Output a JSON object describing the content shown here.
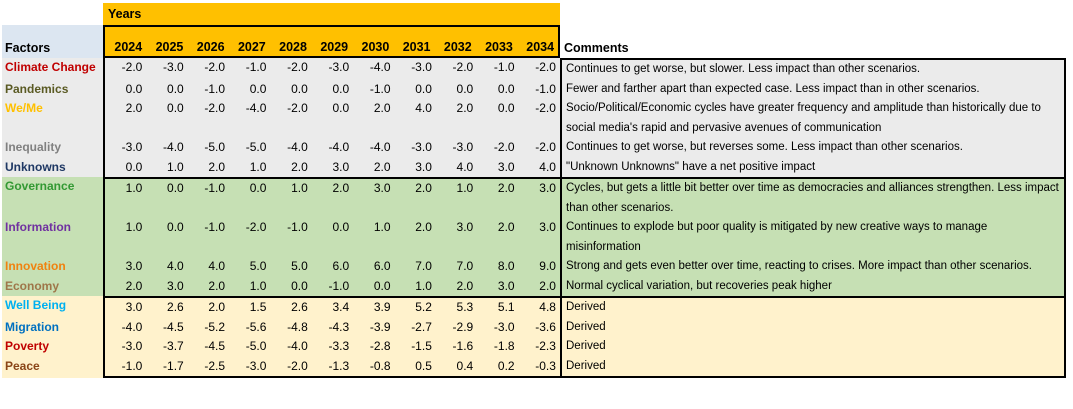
{
  "header": {
    "years_label": "Years",
    "factors_label": "Factors",
    "comments_label": "Comments",
    "years": [
      "2024",
      "2025",
      "2026",
      "2027",
      "2028",
      "2029",
      "2030",
      "2031",
      "2032",
      "2033",
      "2034"
    ]
  },
  "colors": {
    "years_band_bg": "#ffc000",
    "factors_header_bg": "#dce6f1",
    "border": "#000000",
    "scenario_section_bg": "#ebebeb",
    "response_section_bg": "#c6e0b4",
    "derived_section_bg": "#fff2cc"
  },
  "sections": [
    {
      "id": "scenario-factors",
      "bg": "#ebebeb",
      "rows": [
        {
          "factor": "Climate Change",
          "color": "#c00000",
          "values": [
            "-2.0",
            "-3.0",
            "-2.0",
            "-1.0",
            "-2.0",
            "-3.0",
            "-4.0",
            "-3.0",
            "-2.0",
            "-1.0",
            "-2.0"
          ],
          "comment": "Continues to get worse, but slower.  Less impact than other scenarios."
        },
        {
          "factor": "Pandemics",
          "color": "#5a5a23",
          "values": [
            "0.0",
            "0.0",
            "-1.0",
            "0.0",
            "0.0",
            "0.0",
            "-1.0",
            "0.0",
            "0.0",
            "0.0",
            "-1.0"
          ],
          "comment": "Fewer and farther apart than expected case.  Less impact than in other scenarios."
        },
        {
          "factor": "We/Me",
          "color": "#ffc000",
          "values": [
            "2.0",
            "0.0",
            "-2.0",
            "-4.0",
            "-2.0",
            "0.0",
            "2.0",
            "4.0",
            "2.0",
            "0.0",
            "-2.0"
          ],
          "comment": "Socio/Political/Economic cycles have greater frequency and amplitude than historically due to social media's rapid and pervasive avenues of communication"
        },
        {
          "factor": "Inequality",
          "color": "#808080",
          "values": [
            "-3.0",
            "-4.0",
            "-5.0",
            "-5.0",
            "-4.0",
            "-4.0",
            "-4.0",
            "-3.0",
            "-3.0",
            "-2.0",
            "-2.0"
          ],
          "comment": "Continues to get worse, but reverses some.  Less impact than other scenarios."
        },
        {
          "factor": "Unknowns",
          "color": "#1f3864",
          "values": [
            "0.0",
            "1.0",
            "2.0",
            "1.0",
            "2.0",
            "3.0",
            "2.0",
            "3.0",
            "4.0",
            "3.0",
            "4.0"
          ],
          "comment": "\"Unknown Unknowns\" have a net positive impact"
        }
      ]
    },
    {
      "id": "response-factors",
      "bg": "#c6e0b4",
      "rows": [
        {
          "factor": "Governance",
          "color": "#339933",
          "values": [
            "1.0",
            "0.0",
            "-1.0",
            "0.0",
            "1.0",
            "2.0",
            "3.0",
            "2.0",
            "1.0",
            "2.0",
            "3.0"
          ],
          "comment": "Cycles, but gets a little bit better over time as democracies and alliances strengthen. Less impact than other scenarios."
        },
        {
          "factor": "Information",
          "color": "#7030a0",
          "values": [
            "1.0",
            "0.0",
            "-1.0",
            "-2.0",
            "-1.0",
            "0.0",
            "1.0",
            "2.0",
            "3.0",
            "2.0",
            "3.0"
          ],
          "comment": "Continues to explode but poor quality is mitigated by new creative ways to manage misinformation"
        },
        {
          "factor": "Innovation",
          "color": "#f0820f",
          "values": [
            "3.0",
            "4.0",
            "4.0",
            "5.0",
            "5.0",
            "6.0",
            "6.0",
            "7.0",
            "7.0",
            "8.0",
            "9.0"
          ],
          "comment": "Strong and gets even better over time, reacting to crises. More impact than other scenarios."
        },
        {
          "factor": "Economy",
          "color": "#9e7649",
          "values": [
            "2.0",
            "3.0",
            "2.0",
            "1.0",
            "0.0",
            "-1.0",
            "0.0",
            "1.0",
            "2.0",
            "3.0",
            "2.0"
          ],
          "comment": "Normal cyclical variation, but recoveries peak higher"
        }
      ]
    },
    {
      "id": "derived-outcomes",
      "bg": "#fff2cc",
      "rows": [
        {
          "factor": "Well Being",
          "color": "#00b0f0",
          "values": [
            "3.0",
            "2.6",
            "2.0",
            "1.5",
            "2.6",
            "3.4",
            "3.9",
            "5.2",
            "5.3",
            "5.1",
            "4.8"
          ],
          "comment": "Derived"
        },
        {
          "factor": "Migration",
          "color": "#0070c0",
          "values": [
            "-4.0",
            "-4.5",
            "-5.2",
            "-5.6",
            "-4.8",
            "-4.3",
            "-3.9",
            "-2.7",
            "-2.9",
            "-3.0",
            "-3.6"
          ],
          "comment": "Derived"
        },
        {
          "factor": "Poverty",
          "color": "#c00000",
          "values": [
            "-3.0",
            "-3.7",
            "-4.5",
            "-5.0",
            "-4.0",
            "-3.3",
            "-2.8",
            "-1.5",
            "-1.6",
            "-1.8",
            "-2.3"
          ],
          "comment": "Derived"
        },
        {
          "factor": "Peace",
          "color": "#8a4517",
          "values": [
            "-1.0",
            "-1.7",
            "-2.5",
            "-3.0",
            "-2.0",
            "-1.3",
            "-0.8",
            "0.5",
            "0.4",
            "0.2",
            "-0.3"
          ],
          "comment": "Derived"
        }
      ]
    }
  ]
}
